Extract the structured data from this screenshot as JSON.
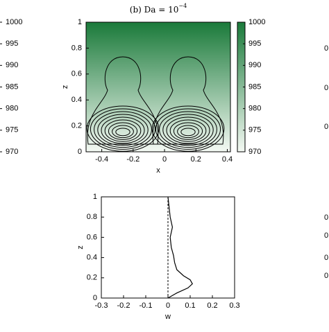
{
  "chart_data": [
    {
      "type": "heatmap",
      "title": "(b) Da = 10",
      "title_exponent": "−4",
      "xlabel": "x",
      "ylabel": "z",
      "xlim": [
        -0.5,
        0.42
      ],
      "xticks": [
        -0.4,
        -0.2,
        0,
        0.2,
        0.4
      ],
      "ylim": [
        0,
        1
      ],
      "yticks": [
        0,
        0.2,
        0.4,
        0.6,
        0.8,
        1
      ],
      "colorbar": {
        "zlim": [
          970,
          1000
        ],
        "zticks": [
          970,
          975,
          980,
          985,
          990,
          995,
          1000
        ],
        "colors": [
          "#f4f9f3",
          "#1a7a3a"
        ]
      }
    },
    {
      "type": "line",
      "xlabel": "w",
      "ylabel": "z",
      "color": "#000000",
      "x": [
        0,
        0.04,
        0.09,
        0.11,
        0.1,
        0.07,
        0.04,
        0.03,
        0.025,
        0.015,
        0.01,
        0.02,
        0.01,
        0.005,
        0
      ],
      "y": [
        0,
        0.05,
        0.1,
        0.14,
        0.18,
        0.22,
        0.28,
        0.35,
        0.42,
        0.5,
        0.6,
        0.7,
        0.8,
        0.9,
        1
      ],
      "xlim": [
        -0.3,
        0.3
      ],
      "xticks": [
        -0.3,
        -0.2,
        -0.1,
        0,
        0.1,
        0.2,
        0.3
      ],
      "ylim": [
        0,
        1
      ],
      "yticks": [
        0,
        0.2,
        0.4,
        0.6,
        0.8,
        1
      ]
    },
    {
      "type": "colorbar-fragment",
      "zlim": [
        970,
        1000
      ],
      "zticks": [
        970,
        975,
        980,
        985,
        990,
        995,
        1000
      ]
    },
    {
      "type": "tick-fragment",
      "labels": [
        "0",
        "0",
        "0",
        "0",
        "0",
        "0",
        "0"
      ]
    }
  ]
}
